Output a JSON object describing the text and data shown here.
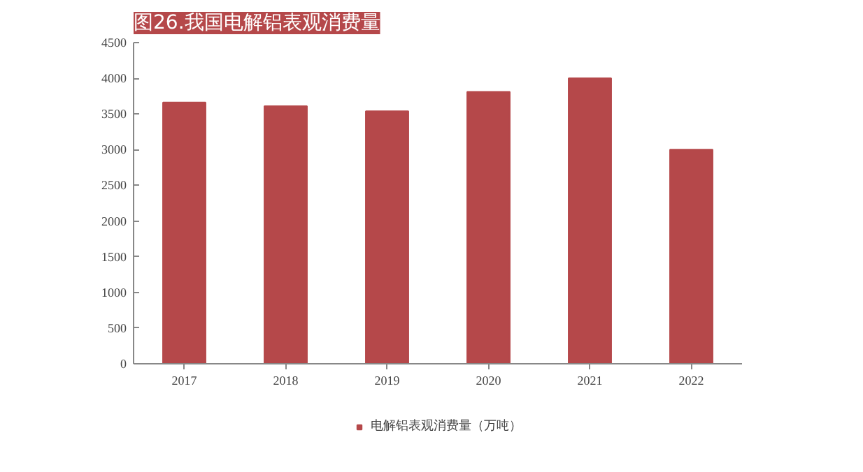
{
  "chart_data": {
    "type": "bar",
    "title": "图26.我国电解铝表观消费量",
    "categories": [
      "2017",
      "2018",
      "2019",
      "2020",
      "2021",
      "2022"
    ],
    "series": [
      {
        "name": "电解铝表观消费量（万吨）",
        "color": "#b5484a",
        "values": [
          3660,
          3610,
          3540,
          3810,
          4000,
          3000
        ]
      }
    ],
    "ylim": [
      0,
      4500
    ],
    "yticks": [
      0,
      500,
      1000,
      1500,
      2000,
      2500,
      3000,
      3500,
      4000,
      4500
    ],
    "grid": false,
    "legend": "bottom"
  }
}
